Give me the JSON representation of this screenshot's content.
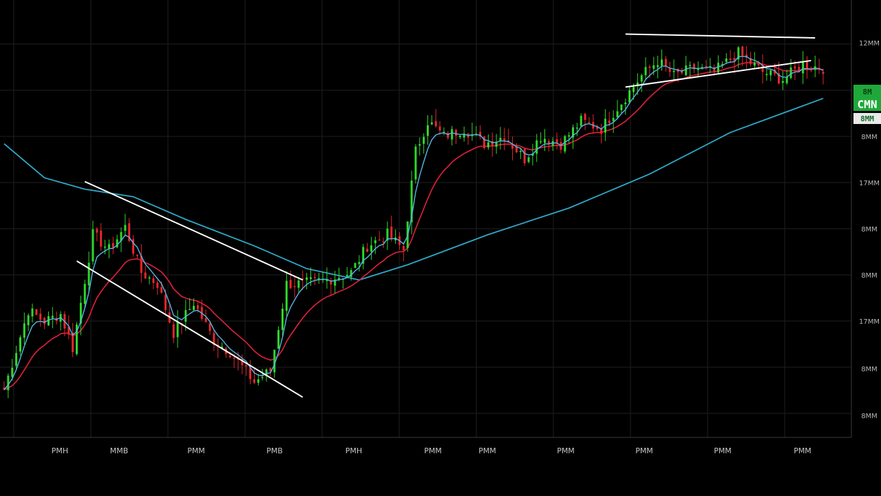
{
  "chart_data": {
    "type": "candlestick",
    "title": "",
    "xlabel": "",
    "ylabel": "",
    "grid": true,
    "ylim": [
      0,
      100
    ],
    "x_ticks": [
      "PMH",
      "MMB",
      "PMM",
      "PMB",
      "PMH",
      "PMM",
      "PMM",
      "PMM",
      "PMM",
      "PMM",
      "PMM"
    ],
    "y_ticks": [
      "12MM",
      "8MM",
      "17MM",
      "8MM",
      "8MM",
      "17MM",
      "8MM",
      "8MM"
    ],
    "price_badge": {
      "line1": "8M",
      "line2": "CMN",
      "line3": "8MM"
    },
    "colors": {
      "up": "#2ed82a",
      "down": "#e8262c",
      "ma_fast": "#56b8e8",
      "ma_mid": "#e3203c",
      "ma_slow": "#2fa8c8",
      "trendline": "#ffffff",
      "grid": "#1f1f1f",
      "background": "#000000",
      "badge": "#1fa83a"
    },
    "close_keypoints": [
      {
        "x": 0,
        "y": 7
      },
      {
        "x": 6,
        "y": 28
      },
      {
        "x": 10,
        "y": 25
      },
      {
        "x": 14,
        "y": 27
      },
      {
        "x": 17,
        "y": 18
      },
      {
        "x": 22,
        "y": 48
      },
      {
        "x": 26,
        "y": 44
      },
      {
        "x": 30,
        "y": 50
      },
      {
        "x": 34,
        "y": 38
      },
      {
        "x": 38,
        "y": 35
      },
      {
        "x": 42,
        "y": 22
      },
      {
        "x": 47,
        "y": 30
      },
      {
        "x": 52,
        "y": 20
      },
      {
        "x": 56,
        "y": 17
      },
      {
        "x": 62,
        "y": 9
      },
      {
        "x": 66,
        "y": 12
      },
      {
        "x": 70,
        "y": 35
      },
      {
        "x": 74,
        "y": 35
      },
      {
        "x": 80,
        "y": 36
      },
      {
        "x": 86,
        "y": 38
      },
      {
        "x": 90,
        "y": 45
      },
      {
        "x": 95,
        "y": 48
      },
      {
        "x": 99,
        "y": 44
      },
      {
        "x": 102,
        "y": 70
      },
      {
        "x": 105,
        "y": 78
      },
      {
        "x": 109,
        "y": 74
      },
      {
        "x": 114,
        "y": 76
      },
      {
        "x": 119,
        "y": 72
      },
      {
        "x": 124,
        "y": 74
      },
      {
        "x": 129,
        "y": 68
      },
      {
        "x": 133,
        "y": 74
      },
      {
        "x": 138,
        "y": 72
      },
      {
        "x": 143,
        "y": 78
      },
      {
        "x": 148,
        "y": 76
      },
      {
        "x": 153,
        "y": 83
      },
      {
        "x": 158,
        "y": 90
      },
      {
        "x": 162,
        "y": 94
      },
      {
        "x": 166,
        "y": 90
      },
      {
        "x": 171,
        "y": 92
      },
      {
        "x": 176,
        "y": 91
      },
      {
        "x": 182,
        "y": 96
      },
      {
        "x": 188,
        "y": 91
      },
      {
        "x": 193,
        "y": 89
      },
      {
        "x": 198,
        "y": 93
      },
      {
        "x": 203,
        "y": 92
      }
    ],
    "slow_ma": [
      {
        "x": 0,
        "y": 72
      },
      {
        "x": 10,
        "y": 63
      },
      {
        "x": 20,
        "y": 60
      },
      {
        "x": 32,
        "y": 58
      },
      {
        "x": 45,
        "y": 52
      },
      {
        "x": 62,
        "y": 45
      },
      {
        "x": 75,
        "y": 39
      },
      {
        "x": 88,
        "y": 36
      },
      {
        "x": 100,
        "y": 40
      },
      {
        "x": 120,
        "y": 48
      },
      {
        "x": 140,
        "y": 55
      },
      {
        "x": 160,
        "y": 64
      },
      {
        "x": 180,
        "y": 75
      },
      {
        "x": 203,
        "y": 84
      }
    ],
    "trendlines": [
      {
        "x1": 20,
        "y1": 62,
        "x2": 74,
        "y2": 36
      },
      {
        "x1": 18,
        "y1": 41,
        "x2": 74,
        "y2": 5
      },
      {
        "x1": 154,
        "y1": 101,
        "x2": 201,
        "y2": 100
      },
      {
        "x1": 154,
        "y1": 87,
        "x2": 200,
        "y2": 94
      }
    ]
  }
}
